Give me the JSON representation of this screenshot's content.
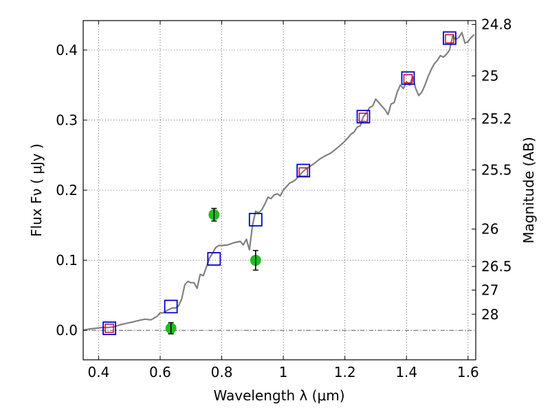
{
  "chart_data": {
    "type": "scatter",
    "xlabel": "Wavelength  λ (μm)",
    "ylabel": "Flux  Fν  ( μJy )",
    "y2label": "Magnitude (AB)",
    "xlim": [
      0.35,
      1.625
    ],
    "ylim": [
      -0.042,
      0.442
    ],
    "grid": true,
    "x_ticks": [
      0.4,
      0.6,
      0.8,
      1.0,
      1.2,
      1.4,
      1.6
    ],
    "x_tick_labels": [
      "0.4",
      "0.6",
      "0.8",
      "1",
      "1.2",
      "1.4",
      "1.6"
    ],
    "y_ticks": [
      0.0,
      0.1,
      0.2,
      0.3,
      0.4
    ],
    "y_tick_labels": [
      "0.0",
      "0.1",
      "0.2",
      "0.3",
      "0.4"
    ],
    "y2_ticks": [
      {
        "label": "24.8",
        "flux": 0.4365
      },
      {
        "label": "25",
        "flux": 0.3631
      },
      {
        "label": "25.2",
        "flux": 0.302
      },
      {
        "label": "25.5",
        "flux": 0.2291
      },
      {
        "label": "26",
        "flux": 0.1445
      },
      {
        "label": "26.5",
        "flux": 0.0912
      },
      {
        "label": "27",
        "flux": 0.0575
      },
      {
        "label": "28",
        "flux": 0.0229
      }
    ],
    "zero_line": 0.0,
    "colors": {
      "spectrum": "#808080",
      "model_squares": "#0000cc",
      "observed_squares": "#cc0033",
      "detections": "#22bb22",
      "errorbars": "#000000"
    },
    "series": [
      {
        "kind": "spectrum",
        "x": [
          0.35,
          0.37,
          0.39,
          0.41,
          0.43,
          0.45,
          0.47,
          0.49,
          0.51,
          0.53,
          0.55,
          0.57,
          0.59,
          0.6,
          0.61,
          0.62,
          0.63,
          0.64,
          0.65,
          0.66,
          0.67,
          0.68,
          0.69,
          0.7,
          0.71,
          0.72,
          0.73,
          0.74,
          0.75,
          0.76,
          0.77,
          0.78,
          0.79,
          0.8,
          0.82,
          0.84,
          0.86,
          0.87,
          0.88,
          0.89,
          0.9,
          0.91,
          0.92,
          0.93,
          0.94,
          0.95,
          0.96,
          0.97,
          0.98,
          0.99,
          1.0,
          1.01,
          1.02,
          1.03,
          1.04,
          1.05,
          1.06,
          1.07,
          1.08,
          1.09,
          1.1,
          1.12,
          1.14,
          1.15,
          1.16,
          1.18,
          1.2,
          1.22,
          1.23,
          1.24,
          1.25,
          1.26,
          1.27,
          1.28,
          1.29,
          1.3,
          1.31,
          1.32,
          1.33,
          1.34,
          1.35,
          1.36,
          1.37,
          1.38,
          1.39,
          1.4,
          1.41,
          1.42,
          1.43,
          1.44,
          1.45,
          1.46,
          1.47,
          1.48,
          1.49,
          1.5,
          1.51,
          1.52,
          1.53,
          1.54,
          1.55,
          1.56,
          1.57,
          1.58,
          1.59,
          1.6,
          1.61,
          1.62
        ],
        "y": [
          0.0,
          0.002,
          0.003,
          0.004,
          0.004,
          0.005,
          0.008,
          0.01,
          0.012,
          0.014,
          0.016,
          0.015,
          0.02,
          0.025,
          0.025,
          0.028,
          0.03,
          0.032,
          0.032,
          0.035,
          0.045,
          0.065,
          0.07,
          0.068,
          0.068,
          0.06,
          0.08,
          0.078,
          0.09,
          0.103,
          0.11,
          0.118,
          0.121,
          0.121,
          0.122,
          0.125,
          0.127,
          0.122,
          0.13,
          0.115,
          0.15,
          0.17,
          0.168,
          0.172,
          0.18,
          0.19,
          0.188,
          0.193,
          0.195,
          0.192,
          0.2,
          0.205,
          0.21,
          0.212,
          0.215,
          0.22,
          0.225,
          0.229,
          0.232,
          0.235,
          0.238,
          0.245,
          0.25,
          0.252,
          0.255,
          0.262,
          0.27,
          0.28,
          0.283,
          0.29,
          0.292,
          0.305,
          0.31,
          0.318,
          0.32,
          0.33,
          0.325,
          0.32,
          0.315,
          0.308,
          0.323,
          0.325,
          0.34,
          0.35,
          0.345,
          0.355,
          0.35,
          0.362,
          0.345,
          0.335,
          0.34,
          0.35,
          0.362,
          0.372,
          0.38,
          0.385,
          0.392,
          0.39,
          0.394,
          0.4,
          0.42,
          0.415,
          0.418,
          0.425,
          0.41,
          0.412,
          0.418,
          0.422
        ]
      },
      {
        "kind": "model_squares",
        "x": [
          0.435,
          0.635,
          0.775,
          0.91,
          1.065,
          1.26,
          1.405,
          1.54
        ],
        "y": [
          0.003,
          0.034,
          0.102,
          0.158,
          0.228,
          0.305,
          0.36,
          0.417
        ]
      },
      {
        "kind": "observed_squares",
        "x": [
          0.435,
          1.065,
          1.26,
          1.405,
          1.54
        ],
        "y": [
          0.003,
          0.226,
          0.304,
          0.359,
          0.416
        ]
      },
      {
        "kind": "detections",
        "x": [
          0.635,
          0.775,
          0.91
        ],
        "y": [
          0.003,
          0.165,
          0.1
        ],
        "err": [
          0.008,
          0.009,
          0.014
        ]
      }
    ]
  }
}
